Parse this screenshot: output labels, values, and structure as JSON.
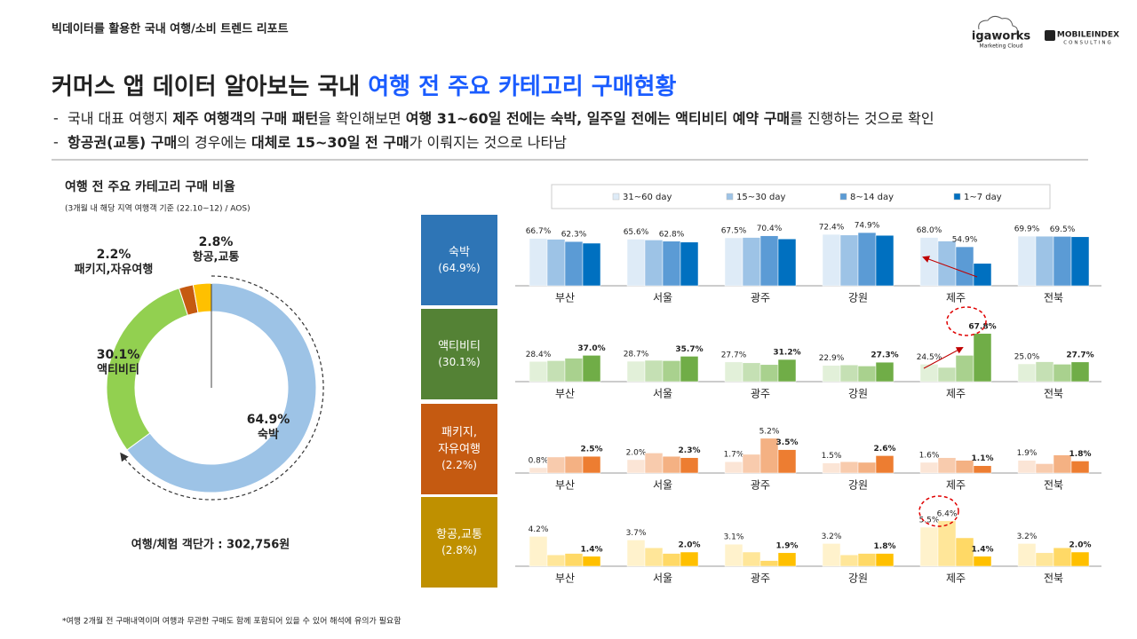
{
  "header": {
    "report_title": "빅데이터를 활용한 국내 여행/소비 트렌드 리포트",
    "logo_igaworks": "igaworks",
    "logo_igaworks_sub": "Marketing Cloud",
    "logo_mobileindex": "MOBILEINDEX",
    "logo_mobileindex_sub": "CONSULTING"
  },
  "title": [
    {
      "text": "커머스 앱 데이터 알아보는 국내 ",
      "highlight": false
    },
    {
      "text": "여행 전 주요 카테고리 구매현황",
      "highlight": true
    }
  ],
  "bullets": [
    {
      "marker": "-",
      "segments": [
        {
          "text": "국내 대표 여행지 ",
          "bold": false
        },
        {
          "text": "제주 여행객의 구매 패턴",
          "bold": true
        },
        {
          "text": "을 확인해보면 ",
          "bold": false
        },
        {
          "text": "여행 31~60일 전에는 숙박, 일주일 전에는  액티비티 예약 구매",
          "bold": true
        },
        {
          "text": "를 진행하는 것으로 확인",
          "bold": false
        }
      ]
    },
    {
      "marker": "-",
      "segments": [
        {
          "text": "항공권(교통) 구매",
          "bold": true
        },
        {
          "text": "의 경우에는 ",
          "bold": false
        },
        {
          "text": "대체로 15~30일 전 구매",
          "bold": true
        },
        {
          "text": "가 이뤄지는 것으로 나타남",
          "bold": false
        }
      ]
    }
  ],
  "footnote": "*여행 2개월 전 구매내역이며 여행과 무관한 구매도 함께 포함되어 있을 수 있어 해석에 유의가 필요함",
  "chart_data": [
    {
      "type": "pie",
      "donut": true,
      "title": "여행 전 주요 카테고리 구매 비율",
      "subtitle": "(3개월 내 해당 지역 여행객 기준 (22.10~12) / AOS)",
      "note": "여행/체험 객단가 : 302,756원",
      "categories": [
        "숙박",
        "액티비티",
        "패키지,자유여행",
        "항공,교통"
      ],
      "values": [
        64.9,
        30.1,
        2.2,
        2.8
      ],
      "value_labels": [
        "64.9%",
        "30.1%",
        "2.2%",
        "2.8%"
      ],
      "colors": [
        "#9dc3e6",
        "#92d050",
        "#c55a11",
        "#ffc000"
      ]
    },
    {
      "type": "bar",
      "title": "숙박",
      "subtitle": "(64.9%)",
      "title_color": "#2e75b6",
      "legend": "top",
      "ylim": [
        0,
        80
      ],
      "categories": [
        "부산",
        "서울",
        "광주",
        "강원",
        "제주",
        "전북"
      ],
      "series": [
        {
          "name": "31~60 day",
          "color": "#deebf7",
          "values": [
            66.7,
            65.6,
            67.5,
            72.4,
            68.0,
            69.9
          ],
          "value_labels": [
            "66.7%",
            "65.6%",
            "67.5%",
            "72.4%",
            "68.0%",
            "69.9%"
          ]
        },
        {
          "name": "15~30 day",
          "color": "#9dc3e6",
          "values": [
            65.5,
            64.5,
            68.0,
            71.5,
            63.0,
            69.8
          ]
        },
        {
          "name": "8~14 day",
          "color": "#5b9bd5",
          "values": [
            62.3,
            62.8,
            70.4,
            74.9,
            54.9,
            69.5
          ],
          "value_labels": [
            "62.3%",
            "62.8%",
            "70.4%",
            "74.9%",
            "54.9%",
            "69.5%"
          ]
        },
        {
          "name": "1~7 day",
          "color": "#0070c0",
          "values": [
            60.0,
            61.5,
            66.0,
            71.0,
            31.5,
            69.0
          ]
        }
      ]
    },
    {
      "type": "bar",
      "title": "액티비티",
      "subtitle": "(30.1%)",
      "title_color": "#548235",
      "ylim": [
        0,
        80
      ],
      "categories": [
        "부산",
        "서울",
        "광주",
        "강원",
        "제주",
        "전북"
      ],
      "series": [
        {
          "color": "#e2f0d9",
          "values": [
            28.4,
            28.7,
            27.7,
            22.9,
            24.5,
            25.0
          ],
          "value_labels": [
            "28.4%",
            "28.7%",
            "27.7%",
            "22.9%",
            "24.5%",
            "25.0%"
          ]
        },
        {
          "color": "#c5e0b4",
          "values": [
            29.5,
            30.0,
            26.5,
            23.5,
            20.0,
            28.0
          ]
        },
        {
          "color": "#a9d18e",
          "values": [
            33.0,
            29.5,
            24.0,
            22.0,
            37.0,
            24.5
          ]
        },
        {
          "color": "#70ad47",
          "values": [
            37.0,
            35.7,
            31.2,
            27.3,
            67.8,
            27.7
          ],
          "value_labels": [
            "37.0%",
            "35.7%",
            "31.2%",
            "27.3%",
            "67.8%",
            "27.7%"
          ]
        }
      ]
    },
    {
      "type": "bar",
      "title": "패키지,\n자유여행",
      "subtitle": "(2.2%)",
      "title_color": "#c55a11",
      "ylim": [
        0,
        8.5
      ],
      "categories": [
        "부산",
        "서울",
        "광주",
        "강원",
        "제주",
        "전북"
      ],
      "series": [
        {
          "color": "#fbe5d6",
          "values": [
            0.8,
            2.0,
            1.7,
            1.5,
            1.6,
            1.9
          ],
          "value_labels": [
            "0.8%",
            "2.0%",
            "1.7%",
            "1.5%",
            "1.6%",
            "1.9%"
          ]
        },
        {
          "color": "#f8cbad",
          "values": [
            2.4,
            3.0,
            2.8,
            1.7,
            2.3,
            1.4
          ]
        },
        {
          "color": "#f4b183",
          "values": [
            2.5,
            2.5,
            5.2,
            1.6,
            1.9,
            2.7
          ],
          "value_labels": [
            null,
            null,
            "5.2%",
            null,
            null,
            null
          ]
        },
        {
          "color": "#ed7d31",
          "values": [
            2.5,
            2.3,
            3.5,
            2.6,
            1.1,
            1.8
          ],
          "value_labels": [
            "2.5%",
            "2.3%",
            "3.5%",
            "2.6%",
            "1.1%",
            "1.8%"
          ]
        }
      ]
    },
    {
      "type": "bar",
      "title": "항공,교통",
      "subtitle": "(2.8%)",
      "title_color": "#bf9000",
      "ylim": [
        0,
        8
      ],
      "categories": [
        "부산",
        "서울",
        "광주",
        "강원",
        "제주",
        "전북"
      ],
      "series": [
        {
          "color": "#fff2cc",
          "values": [
            4.2,
            3.7,
            3.1,
            3.2,
            5.5,
            3.2
          ],
          "value_labels": [
            "4.2%",
            "3.7%",
            "3.1%",
            "3.2%",
            "5.5%",
            "3.2%"
          ]
        },
        {
          "color": "#ffe699",
          "values": [
            1.6,
            2.6,
            2.0,
            1.6,
            6.4,
            1.9
          ],
          "value_labels": [
            null,
            null,
            null,
            null,
            "6.4%",
            null
          ]
        },
        {
          "color": "#ffd966",
          "values": [
            1.8,
            1.8,
            0.8,
            1.8,
            4.0,
            2.6
          ]
        },
        {
          "color": "#ffc000",
          "values": [
            1.4,
            2.0,
            1.9,
            1.8,
            1.4,
            2.0
          ],
          "value_labels": [
            "1.4%",
            "2.0%",
            "1.9%",
            "1.8%",
            "1.4%",
            "2.0%"
          ]
        }
      ]
    }
  ]
}
